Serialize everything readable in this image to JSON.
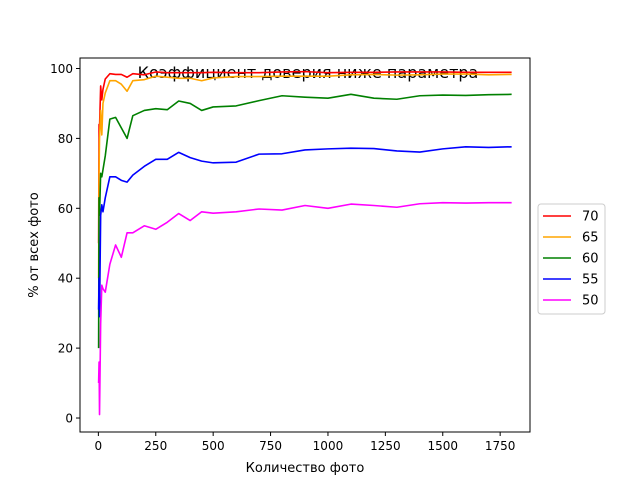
{
  "chart_data": {
    "type": "line",
    "title": "Коэффициент доверия ниже параметра",
    "xlabel": "Количество фото",
    "ylabel": "% от всех фото",
    "xlim": [
      -80,
      1880
    ],
    "ylim": [
      -4,
      103
    ],
    "xticks": [
      0,
      250,
      500,
      750,
      1000,
      1250,
      1500,
      1750
    ],
    "yticks": [
      0,
      20,
      40,
      60,
      80,
      100
    ],
    "grid": false,
    "legend": {
      "placement": "center-right-outside"
    },
    "x": [
      1,
      3,
      5,
      10,
      15,
      20,
      30,
      50,
      75,
      100,
      125,
      150,
      200,
      250,
      300,
      350,
      400,
      450,
      500,
      600,
      700,
      800,
      900,
      1000,
      1100,
      1200,
      1300,
      1400,
      1500,
      1600,
      1700,
      1800
    ],
    "series": [
      {
        "name": "70",
        "color": "#ff0000",
        "values": [
          50,
          84,
          83,
          95,
          91,
          94,
          97,
          98.5,
          98.3,
          98.3,
          97.5,
          98.5,
          98.2,
          99,
          98.8,
          98.8,
          98.8,
          98.8,
          98.9,
          98.8,
          98.8,
          99,
          99.1,
          98.8,
          98.9,
          98.9,
          99,
          99,
          99,
          98.9,
          98.9,
          98.9
        ]
      },
      {
        "name": "65",
        "color": "#ffa500",
        "values": [
          40,
          70,
          80,
          88,
          81,
          90,
          93,
          96.5,
          96.5,
          95.5,
          93.5,
          96.5,
          96.8,
          97.8,
          97.5,
          97.2,
          97.2,
          96.5,
          97.3,
          97.7,
          97.7,
          97.8,
          97.8,
          97.8,
          98.2,
          98.3,
          98.1,
          98.2,
          98.4,
          98.4,
          98.2,
          98.3
        ]
      },
      {
        "name": "60",
        "color": "#008000",
        "values": [
          20,
          63,
          58,
          70,
          69,
          71,
          75,
          85.5,
          86,
          83,
          80,
          86.5,
          88,
          88.5,
          88.2,
          90.7,
          90,
          88,
          89,
          89.3,
          90.8,
          92.2,
          91.8,
          91.5,
          92.6,
          91.5,
          91.2,
          92.2,
          92.4,
          92.3,
          92.5,
          92.6
        ]
      },
      {
        "name": "55",
        "color": "#0000ff",
        "values": [
          31,
          40,
          29,
          58,
          61,
          59,
          63,
          69,
          69,
          68,
          67.5,
          69.5,
          72,
          74,
          74,
          76,
          74.5,
          73.5,
          73,
          73.2,
          75.5,
          75.6,
          76.7,
          77,
          77.2,
          77.1,
          76.4,
          76.1,
          77,
          77.6,
          77.4,
          77.6
        ]
      },
      {
        "name": "50",
        "color": "#ff00ff",
        "values": [
          10,
          16,
          1,
          27,
          38,
          37,
          36,
          44,
          49.5,
          46,
          53,
          53,
          55,
          54,
          56,
          58.5,
          56.5,
          59,
          58.6,
          59,
          59.8,
          59.5,
          60.8,
          60,
          61.2,
          60.8,
          60.3,
          61.3,
          61.6,
          61.5,
          61.6,
          61.6
        ]
      }
    ]
  }
}
